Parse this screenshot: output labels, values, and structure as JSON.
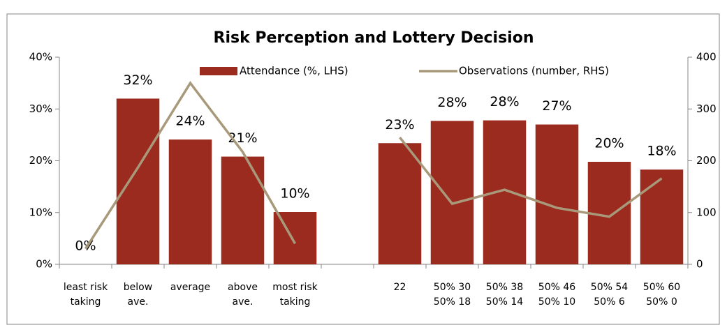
{
  "chart_data": {
    "type": "bar_line",
    "title": "Risk Perception and Lottery Decision",
    "categories": [
      [
        "least risk",
        "taking"
      ],
      [
        "below",
        "ave."
      ],
      [
        "average"
      ],
      [
        "above",
        "ave."
      ],
      [
        "most risk",
        "taking"
      ],
      null,
      [
        "22"
      ],
      [
        "50% 30",
        "50% 18"
      ],
      [
        "50% 38",
        "50% 14"
      ],
      [
        "50% 46",
        "50% 10"
      ],
      [
        "50% 54",
        "50% 6"
      ],
      [
        "50% 60",
        "50% 0"
      ]
    ],
    "series": [
      {
        "name": "Attendance (%, LHS)",
        "color": "#9c2b1f",
        "type": "bar",
        "values": [
          0,
          32,
          24.1,
          20.8,
          10.1,
          null,
          23.4,
          27.7,
          27.8,
          27,
          19.8,
          18.3
        ],
        "value_labels": [
          "0%",
          "32%",
          "24%",
          "21%",
          "10%",
          null,
          "23%",
          "28%",
          "28%",
          "27%",
          "20%",
          "18%"
        ]
      },
      {
        "name": "Observations (number, RHS)",
        "color": "#a8997a",
        "type": "line",
        "axis": "y2",
        "values": [
          30,
          187,
          350,
          217,
          40,
          null,
          245,
          117,
          144,
          109,
          92,
          166
        ]
      }
    ],
    "ylim": [
      0,
      40
    ],
    "yticks": [
      {
        "value": 0,
        "label": "0%"
      },
      {
        "value": 10,
        "label": "10%"
      },
      {
        "value": 20,
        "label": "20%"
      },
      {
        "value": 30,
        "label": "30%"
      },
      {
        "value": 40,
        "label": "40%"
      }
    ],
    "y2lim": [
      0,
      400
    ],
    "y2ticks": [
      0,
      100,
      200,
      300,
      400
    ]
  }
}
